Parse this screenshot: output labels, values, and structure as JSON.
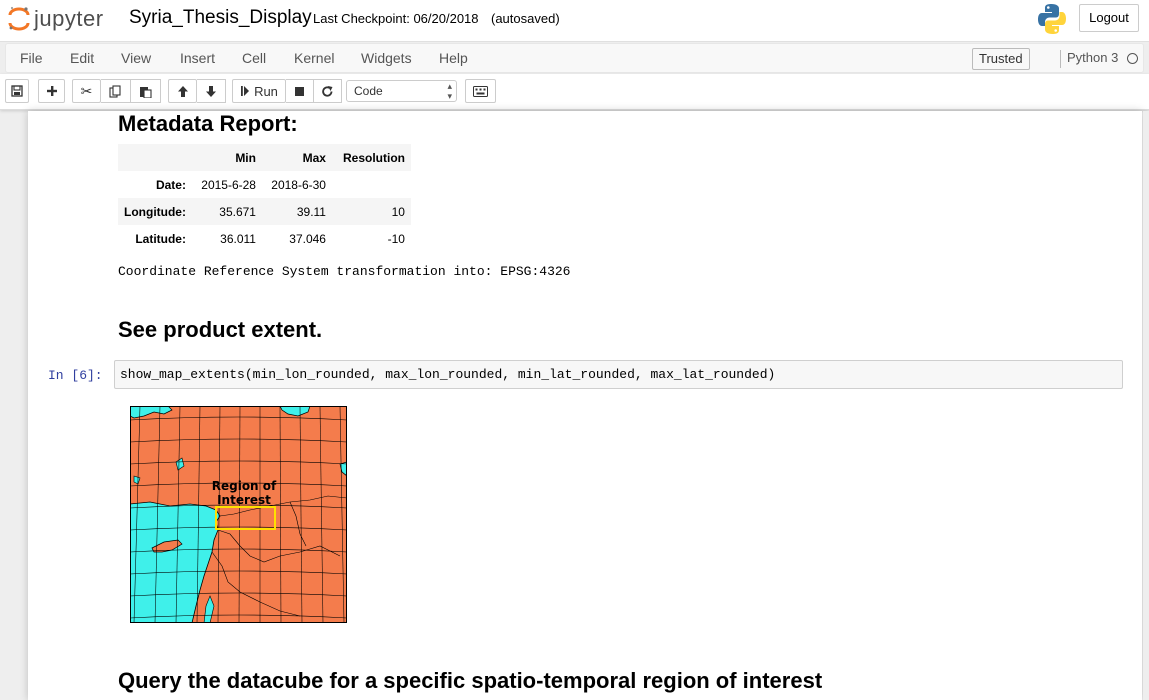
{
  "header": {
    "logo_text": "jupyter",
    "notebook_title": "Syria_Thesis_Display",
    "checkpoint": "Last Checkpoint: 06/20/2018",
    "autosave_status": "(autosaved)",
    "logout_label": "Logout"
  },
  "menubar": {
    "items": [
      "File",
      "Edit",
      "View",
      "Insert",
      "Cell",
      "Kernel",
      "Widgets",
      "Help"
    ],
    "trusted_label": "Trusted",
    "kernel_name": "Python 3"
  },
  "toolbar": {
    "run_label": "Run",
    "cell_type": "Code"
  },
  "notebook": {
    "metadata_heading": "Metadata Report:",
    "metadata_table": {
      "columns": [
        "",
        "Min",
        "Max",
        "Resolution"
      ],
      "rows": [
        {
          "label": "Date:",
          "min": "2015-6-28",
          "max": "2018-6-30",
          "resolution": ""
        },
        {
          "label": "Longitude:",
          "min": "35.671",
          "max": "39.11",
          "resolution": "10"
        },
        {
          "label": "Latitude:",
          "min": "36.011",
          "max": "37.046",
          "resolution": "-10"
        }
      ]
    },
    "crs_text": "Coordinate Reference System transformation into: EPSG:4326",
    "extent_heading": "See product extent.",
    "cell_prompt": "In [6]:",
    "cell_code": "show_map_extents(min_lon_rounded, max_lon_rounded, min_lat_rounded, max_lat_rounded)",
    "map_label_line1": "Region of",
    "map_label_line2": "Interest",
    "query_heading": "Query the datacube for a specific spatio-temporal region of interest"
  },
  "colors": {
    "land": "#f47c4c",
    "sea": "#3ff0ea",
    "roi_box": "#ffe000",
    "prompt": "#303f9f"
  }
}
